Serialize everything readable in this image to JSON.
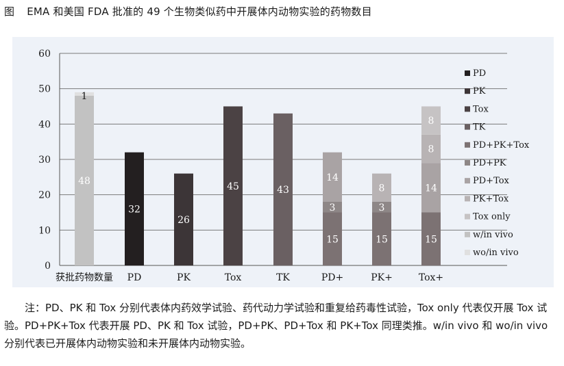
{
  "title": {
    "fig_label": "图",
    "text": "EMA 和美国 FDA 批准的 49 个生物类似药中开展体内动物实验的药物数目"
  },
  "note": "注：PD、PK 和 Tox 分别代表体内药效学试验、药代动力学试验和重复给药毒性试验，Tox only 代表仅开展 Tox 试验。PD+PK+Tox 代表开展 PD、PK 和 Tox 试验，PD+PK、PD+Tox 和 PK+Tox 同理类推。w/in vivo 和 wo/in vivo 分别代表已开展体内动物实验和未开展体内动物实验。",
  "colors": {
    "PD": "#231f20",
    "PK": "#3c3537",
    "Tox": "#4b4244",
    "TK": "#6a6062",
    "PD+PK+Tox": "#7c7273",
    "PD+PK": "#8e8787",
    "PD+Tox": "#a9a3a4",
    "PK+Tox": "#b8b3b4",
    "Tox only": "#c6c3c4",
    "w/in vivo": "#c2c2c2",
    "wo/in vivo": "#e0e0e0"
  },
  "chart_data": {
    "type": "bar",
    "stacked": true,
    "categories": [
      "获批药物数量",
      "PD",
      "PK",
      "Tox",
      "TK",
      "PD+",
      "PK+",
      "Tox+"
    ],
    "y_ticks": [
      "0",
      "10",
      "20",
      "30",
      "40",
      "50",
      "60"
    ],
    "ylim": [
      0,
      60
    ],
    "legend_position": "right",
    "legend": [
      "PD",
      "PK",
      "Tox",
      "TK",
      "PD+PK+Tox",
      "PD+PK",
      "PD+Tox",
      "PK+Tox",
      "Tox only",
      "w/in vivo",
      "wo/in vivo"
    ],
    "series": [
      {
        "name": "w/in vivo",
        "values": [
          48,
          null,
          null,
          null,
          null,
          null,
          null,
          null
        ],
        "labels": [
          "48",
          "",
          "",
          "",
          "",
          "",
          "",
          ""
        ]
      },
      {
        "name": "wo/in vivo",
        "values": [
          1,
          null,
          null,
          null,
          null,
          null,
          null,
          null
        ],
        "labels": [
          "1",
          "",
          "",
          "",
          "",
          "",
          "",
          ""
        ]
      },
      {
        "name": "PD",
        "values": [
          null,
          32,
          null,
          null,
          null,
          null,
          null,
          null
        ],
        "labels": [
          "",
          "32",
          "",
          "",
          "",
          "",
          "",
          ""
        ]
      },
      {
        "name": "PK",
        "values": [
          null,
          null,
          26,
          null,
          null,
          null,
          null,
          null
        ],
        "labels": [
          "",
          "",
          "26",
          "",
          "",
          "",
          "",
          ""
        ]
      },
      {
        "name": "Tox",
        "values": [
          null,
          null,
          null,
          45,
          null,
          null,
          null,
          null
        ],
        "labels": [
          "",
          "",
          "",
          "45",
          "",
          "",
          "",
          ""
        ]
      },
      {
        "name": "TK",
        "values": [
          null,
          null,
          null,
          null,
          43,
          null,
          null,
          null
        ],
        "labels": [
          "",
          "",
          "",
          "",
          "43",
          "",
          "",
          ""
        ]
      },
      {
        "name": "PD+PK+Tox",
        "values": [
          null,
          null,
          null,
          null,
          null,
          15,
          15,
          15
        ],
        "labels": [
          "",
          "",
          "",
          "",
          "",
          "15",
          "15",
          "15"
        ]
      },
      {
        "name": "PD+PK",
        "values": [
          null,
          null,
          null,
          null,
          null,
          3,
          3,
          null
        ],
        "labels": [
          "",
          "",
          "",
          "",
          "",
          "3",
          "3",
          ""
        ]
      },
      {
        "name": "PD+Tox",
        "values": [
          null,
          null,
          null,
          null,
          null,
          14,
          null,
          14
        ],
        "labels": [
          "",
          "",
          "",
          "",
          "",
          "14",
          "",
          "14"
        ]
      },
      {
        "name": "PK+Tox",
        "values": [
          null,
          null,
          null,
          null,
          null,
          null,
          8,
          8
        ],
        "labels": [
          "",
          "",
          "",
          "",
          "",
          "",
          "8",
          "8"
        ]
      },
      {
        "name": "Tox only",
        "values": [
          null,
          null,
          null,
          null,
          null,
          null,
          null,
          8
        ],
        "labels": [
          "",
          "",
          "",
          "",
          "",
          "",
          "",
          "8"
        ]
      }
    ]
  }
}
